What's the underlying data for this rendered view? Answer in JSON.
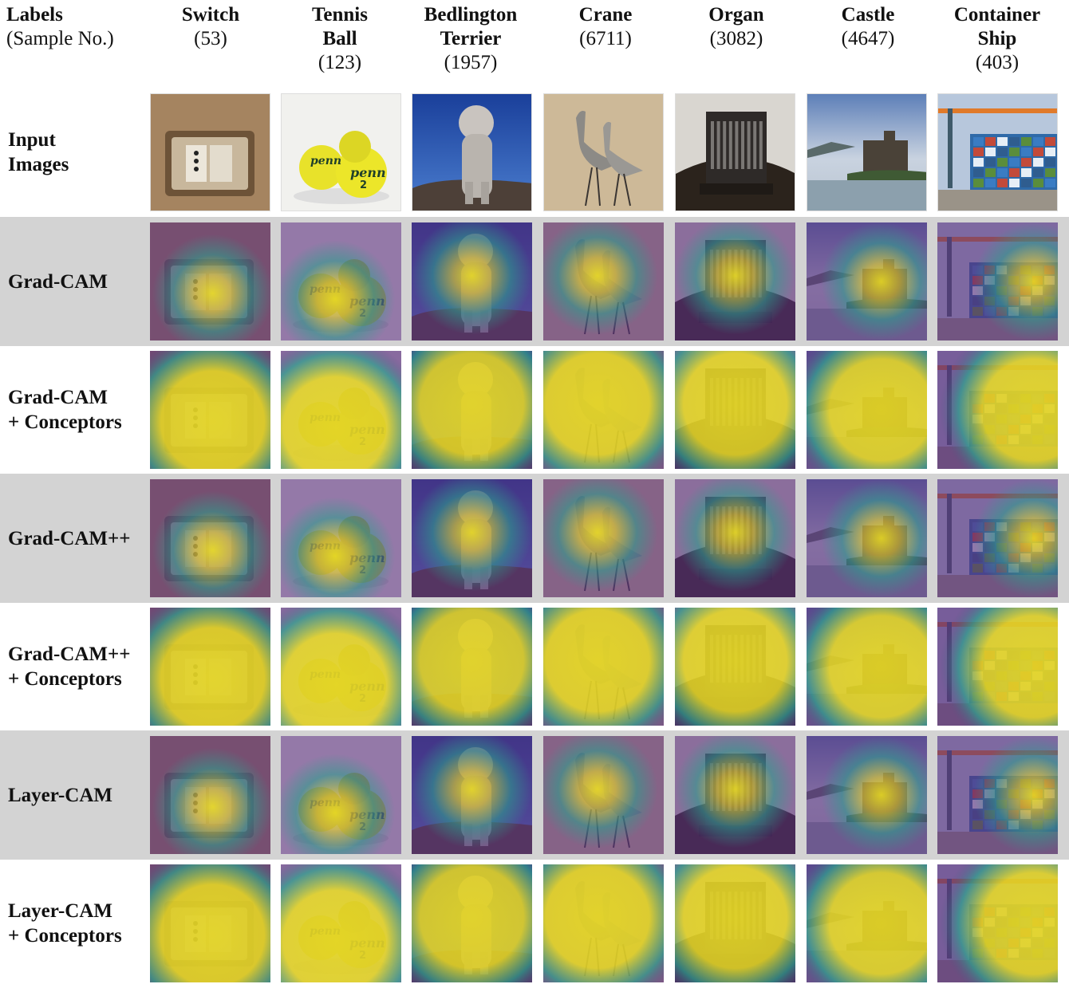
{
  "header": {
    "corner": {
      "title": "Labels",
      "subtitle": "(Sample No.)"
    },
    "columns": [
      {
        "name_lines": [
          "Switch"
        ],
        "number": "(53)"
      },
      {
        "name_lines": [
          "Tennis",
          "Ball"
        ],
        "number": "(123)"
      },
      {
        "name_lines": [
          "Bedlington",
          "Terrier"
        ],
        "number": "(1957)"
      },
      {
        "name_lines": [
          "Crane"
        ],
        "number": "(6711)"
      },
      {
        "name_lines": [
          "Organ"
        ],
        "number": "(3082)"
      },
      {
        "name_lines": [
          "Castle"
        ],
        "number": "(4647)"
      },
      {
        "name_lines": [
          "Container",
          "Ship"
        ],
        "number": "(403)"
      }
    ]
  },
  "rows": [
    {
      "label_lines": [
        "Input",
        "Images"
      ],
      "kind": "input"
    },
    {
      "label_lines": [
        "Grad-CAM"
      ],
      "kind": "focused"
    },
    {
      "label_lines": [
        "Grad-CAM",
        "+ Conceptors"
      ],
      "kind": "broad"
    },
    {
      "label_lines": [
        "Grad-CAM++"
      ],
      "kind": "focused"
    },
    {
      "label_lines": [
        "Grad-CAM++",
        "+ Conceptors"
      ],
      "kind": "broad"
    },
    {
      "label_lines": [
        "Layer-CAM"
      ],
      "kind": "focused"
    },
    {
      "label_lines": [
        "Layer-CAM",
        "+ Conceptors"
      ],
      "kind": "broad"
    }
  ],
  "thumbnail_text": {
    "tennis_ball_brand": "penn",
    "tennis_ball_number": "2"
  },
  "colors": {
    "row_shade": "#d3d3d3",
    "heat_low": "#5a2e7c",
    "heat_mid": "#2aa08c",
    "heat_high": "#f2e61c"
  }
}
